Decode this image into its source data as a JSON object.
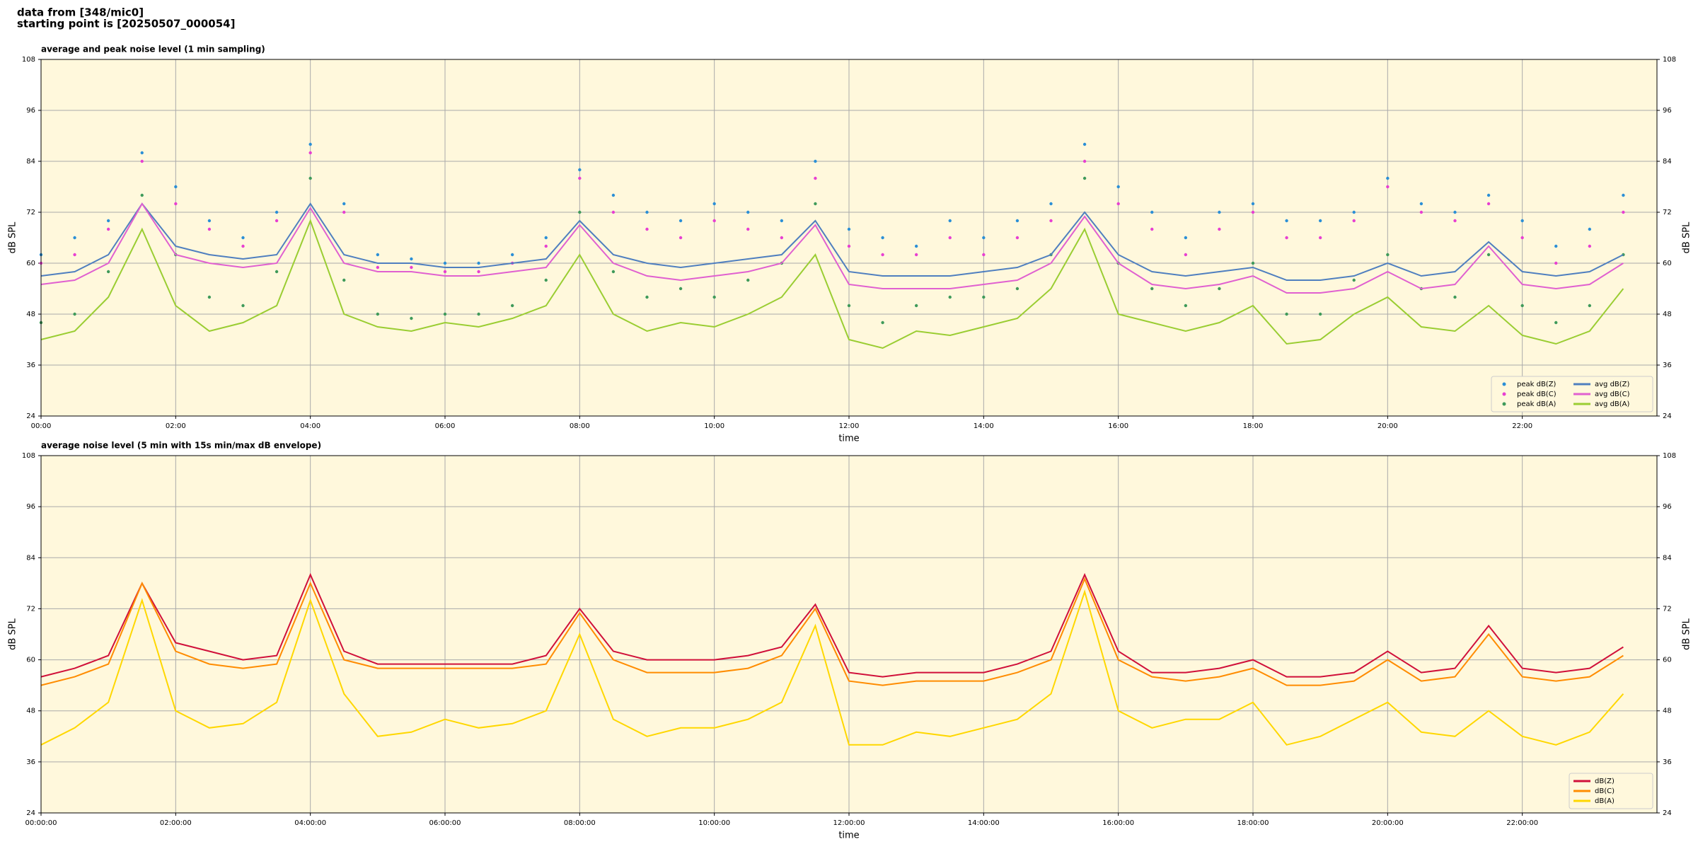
{
  "header": {
    "lines": [
      "data from [348/mic0]",
      "starting point is [20250507_000054]"
    ]
  },
  "chart_data": [
    {
      "type": "line",
      "title": "average and peak noise level (1 min sampling)",
      "x_label": "time",
      "y_label": "dB SPL",
      "x": [
        0,
        0.5,
        1,
        1.5,
        2,
        2.5,
        3,
        3.5,
        4,
        4.5,
        5,
        5.5,
        6,
        6.5,
        7,
        7.5,
        8,
        8.5,
        9,
        9.5,
        10,
        10.5,
        11,
        11.5,
        12,
        12.5,
        13,
        13.5,
        14,
        14.5,
        15,
        15.5,
        16,
        16.5,
        17,
        17.5,
        18,
        18.5,
        19,
        19.5,
        20,
        20.5,
        21,
        21.5,
        22,
        22.5,
        23,
        23.5
      ],
      "xlim": [
        0,
        24
      ],
      "xticks": [
        {
          "value": 0,
          "label": "00:00"
        },
        {
          "value": 2,
          "label": "02:00"
        },
        {
          "value": 4,
          "label": "04:00"
        },
        {
          "value": 6,
          "label": "06:00"
        },
        {
          "value": 8,
          "label": "08:00"
        },
        {
          "value": 10,
          "label": "10:00"
        },
        {
          "value": 12,
          "label": "12:00"
        },
        {
          "value": 14,
          "label": "14:00"
        },
        {
          "value": 16,
          "label": "16:00"
        },
        {
          "value": 18,
          "label": "18:00"
        },
        {
          "value": 20,
          "label": "20:00"
        },
        {
          "value": 22,
          "label": "22:00"
        }
      ],
      "ylim": [
        24,
        108
      ],
      "yticks": [
        24,
        36,
        48,
        60,
        72,
        84,
        96,
        108
      ],
      "grid": true,
      "legend": "lower right",
      "background": "#fff8dc",
      "series": [
        {
          "name": "peak dB(Z)",
          "type": "scatter",
          "color": "#2b8fd6",
          "values": [
            62,
            66,
            70,
            86,
            78,
            70,
            66,
            72,
            88,
            74,
            62,
            61,
            60,
            60,
            62,
            66,
            82,
            76,
            72,
            70,
            74,
            72,
            70,
            84,
            68,
            66,
            64,
            70,
            66,
            70,
            74,
            88,
            78,
            72,
            66,
            72,
            74,
            70,
            70,
            72,
            80,
            74,
            72,
            76,
            70,
            64,
            68,
            76
          ]
        },
        {
          "name": "peak dB(C)",
          "type": "scatter",
          "color": "#e83fd1",
          "values": [
            60,
            62,
            68,
            84,
            74,
            68,
            64,
            70,
            86,
            72,
            59,
            59,
            58,
            58,
            60,
            64,
            80,
            72,
            68,
            66,
            70,
            68,
            66,
            80,
            64,
            62,
            62,
            66,
            62,
            66,
            70,
            84,
            74,
            68,
            62,
            68,
            72,
            66,
            66,
            70,
            78,
            72,
            70,
            74,
            66,
            60,
            64,
            72
          ]
        },
        {
          "name": "peak dB(A)",
          "type": "scatter",
          "color": "#3f9a5a",
          "values": [
            46,
            48,
            58,
            76,
            62,
            52,
            50,
            58,
            80,
            56,
            48,
            47,
            48,
            48,
            50,
            56,
            72,
            58,
            52,
            54,
            52,
            56,
            60,
            74,
            50,
            46,
            50,
            52,
            52,
            54,
            62,
            80,
            60,
            54,
            50,
            54,
            60,
            48,
            48,
            56,
            62,
            54,
            52,
            62,
            50,
            46,
            50,
            62
          ]
        },
        {
          "name": "avg dB(Z)",
          "type": "line",
          "color": "#4f7fbf",
          "values": [
            57,
            58,
            62,
            74,
            64,
            62,
            61,
            62,
            74,
            62,
            60,
            60,
            59,
            59,
            60,
            61,
            70,
            62,
            60,
            59,
            60,
            61,
            62,
            70,
            58,
            57,
            57,
            57,
            58,
            59,
            62,
            72,
            62,
            58,
            57,
            58,
            59,
            56,
            56,
            57,
            60,
            57,
            58,
            65,
            58,
            57,
            58,
            62
          ]
        },
        {
          "name": "avg dB(C)",
          "type": "line",
          "color": "#e060d0",
          "values": [
            55,
            56,
            60,
            74,
            62,
            60,
            59,
            60,
            73,
            60,
            58,
            58,
            57,
            57,
            58,
            59,
            69,
            60,
            57,
            56,
            57,
            58,
            60,
            69,
            55,
            54,
            54,
            54,
            55,
            56,
            60,
            71,
            60,
            55,
            54,
            55,
            57,
            53,
            53,
            54,
            58,
            54,
            55,
            64,
            55,
            54,
            55,
            60
          ]
        },
        {
          "name": "avg dB(A)",
          "type": "line",
          "color": "#9acd32",
          "values": [
            42,
            44,
            52,
            68,
            50,
            44,
            46,
            50,
            70,
            48,
            45,
            44,
            46,
            45,
            47,
            50,
            62,
            48,
            44,
            46,
            45,
            48,
            52,
            62,
            42,
            40,
            44,
            43,
            45,
            47,
            54,
            68,
            48,
            46,
            44,
            46,
            50,
            41,
            42,
            48,
            52,
            45,
            44,
            50,
            43,
            41,
            44,
            54
          ]
        }
      ]
    },
    {
      "type": "line",
      "title": "average noise level (5 min with 15s min/max dB envelope)",
      "x_label": "time",
      "y_label": "dB SPL",
      "x": [
        0,
        0.5,
        1,
        1.5,
        2,
        2.5,
        3,
        3.5,
        4,
        4.5,
        5,
        5.5,
        6,
        6.5,
        7,
        7.5,
        8,
        8.5,
        9,
        9.5,
        10,
        10.5,
        11,
        11.5,
        12,
        12.5,
        13,
        13.5,
        14,
        14.5,
        15,
        15.5,
        16,
        16.5,
        17,
        17.5,
        18,
        18.5,
        19,
        19.5,
        20,
        20.5,
        21,
        21.5,
        22,
        22.5,
        23,
        23.5
      ],
      "xlim": [
        0,
        24
      ],
      "xticks": [
        {
          "value": 0,
          "label": "00:00:00"
        },
        {
          "value": 2,
          "label": "02:00:00"
        },
        {
          "value": 4,
          "label": "04:00:00"
        },
        {
          "value": 6,
          "label": "06:00:00"
        },
        {
          "value": 8,
          "label": "08:00:00"
        },
        {
          "value": 10,
          "label": "10:00:00"
        },
        {
          "value": 12,
          "label": "12:00:00"
        },
        {
          "value": 14,
          "label": "14:00:00"
        },
        {
          "value": 16,
          "label": "16:00:00"
        },
        {
          "value": 18,
          "label": "18:00:00"
        },
        {
          "value": 20,
          "label": "20:00:00"
        },
        {
          "value": 22,
          "label": "22:00:00"
        }
      ],
      "ylim": [
        24,
        108
      ],
      "yticks": [
        24,
        36,
        48,
        60,
        72,
        84,
        96,
        108
      ],
      "grid": true,
      "legend": "lower right",
      "background": "#fff8dc",
      "series": [
        {
          "name": "dB(Z)",
          "type": "line",
          "color": "#d0103a",
          "values": [
            56,
            58,
            61,
            78,
            64,
            62,
            60,
            61,
            80,
            62,
            59,
            59,
            59,
            59,
            59,
            61,
            72,
            62,
            60,
            60,
            60,
            61,
            63,
            73,
            57,
            56,
            57,
            57,
            57,
            59,
            62,
            80,
            62,
            57,
            57,
            58,
            60,
            56,
            56,
            57,
            62,
            57,
            58,
            68,
            58,
            57,
            58,
            63
          ]
        },
        {
          "name": "dB(C)",
          "type": "line",
          "color": "#ff8c00",
          "values": [
            54,
            56,
            59,
            78,
            62,
            59,
            58,
            59,
            78,
            60,
            58,
            58,
            58,
            58,
            58,
            59,
            71,
            60,
            57,
            57,
            57,
            58,
            61,
            72,
            55,
            54,
            55,
            55,
            55,
            57,
            60,
            79,
            60,
            56,
            55,
            56,
            58,
            54,
            54,
            55,
            60,
            55,
            56,
            66,
            56,
            55,
            56,
            61
          ]
        },
        {
          "name": "dB(A)",
          "type": "line",
          "color": "#ffd700",
          "values": [
            40,
            44,
            50,
            74,
            48,
            44,
            45,
            50,
            74,
            52,
            42,
            43,
            46,
            44,
            45,
            48,
            66,
            46,
            42,
            44,
            44,
            46,
            50,
            68,
            40,
            40,
            43,
            42,
            44,
            46,
            52,
            76,
            48,
            44,
            46,
            46,
            50,
            40,
            42,
            46,
            50,
            43,
            42,
            48,
            42,
            40,
            43,
            52
          ]
        }
      ]
    }
  ]
}
